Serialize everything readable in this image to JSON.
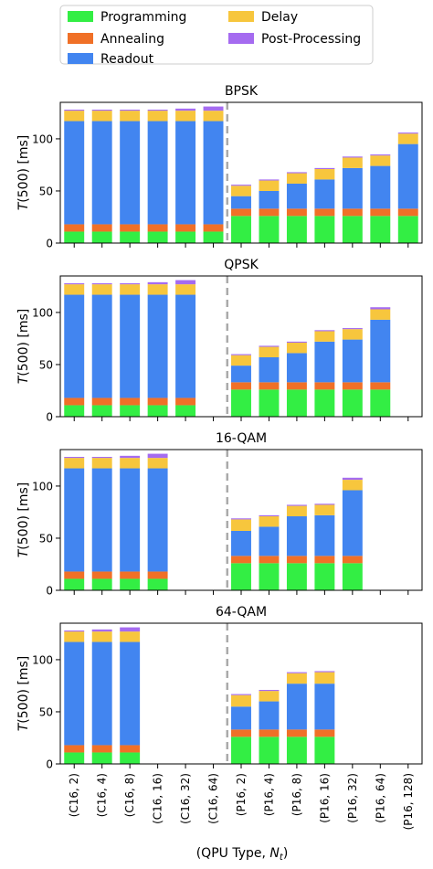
{
  "legend": {
    "items": [
      {
        "label": "Programming",
        "color": "#33ee44"
      },
      {
        "label": "Annealing",
        "color": "#f07027"
      },
      {
        "label": "Readout",
        "color": "#4285f0"
      },
      {
        "label": "Delay",
        "color": "#f7c63d"
      },
      {
        "label": "Post-Processing",
        "color": "#a56bf0"
      }
    ],
    "placement": "top"
  },
  "xlabel_main": "(QPU Type, ",
  "xlabel_var": "N",
  "xlabel_sub": "t",
  "xlabel_close": ")",
  "ylabel_main": "T",
  "ylabel_rest": "(500) [ms]",
  "chart_data": [
    {
      "type": "bar",
      "stacked": true,
      "title": "BPSK",
      "categories": [
        "(C16, 2)",
        "(C16, 4)",
        "(C16, 8)",
        "(C16, 16)",
        "(C16, 32)",
        "(C16, 64)",
        "(P16, 2)",
        "(P16, 4)",
        "(P16, 8)",
        "(P16, 16)",
        "(P16, 32)",
        "(P16, 64)",
        "(P16, 128)"
      ],
      "yticks": [
        0,
        50,
        100
      ],
      "ylim": [
        0,
        135
      ],
      "grid": false,
      "divider_between": [
        "(C16, 64)",
        "(P16, 2)"
      ],
      "series": [
        {
          "name": "Programming",
          "values": [
            11,
            11,
            11,
            11,
            11,
            11,
            26,
            26,
            26,
            26,
            26,
            26,
            26
          ]
        },
        {
          "name": "Annealing",
          "values": [
            7,
            7,
            7,
            7,
            7,
            7,
            7,
            7,
            7,
            7,
            7,
            7,
            7
          ]
        },
        {
          "name": "Readout",
          "values": [
            99,
            99,
            99,
            99,
            99,
            99,
            12,
            17,
            24,
            28,
            39,
            41,
            62
          ]
        },
        {
          "name": "Delay",
          "values": [
            10,
            10,
            10,
            10,
            10,
            10,
            10,
            10,
            10,
            10,
            10,
            10,
            10
          ]
        },
        {
          "name": "Post-Processing",
          "values": [
            1,
            1,
            1,
            1,
            2,
            4,
            1,
            1,
            1,
            1,
            1,
            1,
            1
          ]
        }
      ]
    },
    {
      "type": "bar",
      "stacked": true,
      "title": "QPSK",
      "categories": [
        "(C16, 2)",
        "(C16, 4)",
        "(C16, 8)",
        "(C16, 16)",
        "(C16, 32)",
        "(C16, 64)",
        "(P16, 2)",
        "(P16, 4)",
        "(P16, 8)",
        "(P16, 16)",
        "(P16, 32)",
        "(P16, 64)",
        "(P16, 128)"
      ],
      "yticks": [
        0,
        50,
        100
      ],
      "ylim": [
        0,
        135
      ],
      "grid": false,
      "divider_between": [
        "(C16, 64)",
        "(P16, 2)"
      ],
      "series": [
        {
          "name": "Programming",
          "values": [
            11,
            11,
            11,
            11,
            11,
            null,
            26,
            26,
            26,
            26,
            26,
            26,
            null
          ]
        },
        {
          "name": "Annealing",
          "values": [
            7,
            7,
            7,
            7,
            7,
            null,
            7,
            7,
            7,
            7,
            7,
            7,
            null
          ]
        },
        {
          "name": "Readout",
          "values": [
            99,
            99,
            99,
            99,
            99,
            null,
            16,
            24,
            28,
            39,
            41,
            60,
            null
          ]
        },
        {
          "name": "Delay",
          "values": [
            10,
            10,
            10,
            10,
            10,
            null,
            10,
            10,
            10,
            10,
            10,
            10,
            null
          ]
        },
        {
          "name": "Post-Processing",
          "values": [
            1,
            1,
            1,
            2,
            4,
            null,
            1,
            1,
            1,
            1,
            1,
            2,
            null
          ]
        }
      ]
    },
    {
      "type": "bar",
      "stacked": true,
      "title": "16-QAM",
      "categories": [
        "(C16, 2)",
        "(C16, 4)",
        "(C16, 8)",
        "(C16, 16)",
        "(C16, 32)",
        "(C16, 64)",
        "(P16, 2)",
        "(P16, 4)",
        "(P16, 8)",
        "(P16, 16)",
        "(P16, 32)",
        "(P16, 64)",
        "(P16, 128)"
      ],
      "yticks": [
        0,
        50,
        100
      ],
      "ylim": [
        0,
        135
      ],
      "grid": false,
      "divider_between": [
        "(C16, 64)",
        "(P16, 2)"
      ],
      "series": [
        {
          "name": "Programming",
          "values": [
            11,
            11,
            11,
            11,
            null,
            null,
            26,
            26,
            26,
            26,
            26,
            null,
            null
          ]
        },
        {
          "name": "Annealing",
          "values": [
            7,
            7,
            7,
            7,
            null,
            null,
            7,
            7,
            7,
            7,
            7,
            null,
            null
          ]
        },
        {
          "name": "Readout",
          "values": [
            99,
            99,
            99,
            99,
            null,
            null,
            24,
            28,
            38,
            39,
            63,
            null,
            null
          ]
        },
        {
          "name": "Delay",
          "values": [
            10,
            10,
            10,
            10,
            null,
            null,
            11,
            10,
            10,
            10,
            10,
            null,
            null
          ]
        },
        {
          "name": "Post-Processing",
          "values": [
            1,
            1,
            2,
            4,
            null,
            null,
            1,
            1,
            1,
            1,
            2,
            null,
            null
          ]
        }
      ]
    },
    {
      "type": "bar",
      "stacked": true,
      "title": "64-QAM",
      "categories": [
        "(C16, 2)",
        "(C16, 4)",
        "(C16, 8)",
        "(C16, 16)",
        "(C16, 32)",
        "(C16, 64)",
        "(P16, 2)",
        "(P16, 4)",
        "(P16, 8)",
        "(P16, 16)",
        "(P16, 32)",
        "(P16, 64)",
        "(P16, 128)"
      ],
      "yticks": [
        0,
        50,
        100
      ],
      "ylim": [
        0,
        135
      ],
      "grid": false,
      "divider_between": [
        "(C16, 64)",
        "(P16, 2)"
      ],
      "series": [
        {
          "name": "Programming",
          "values": [
            11,
            11,
            11,
            null,
            null,
            null,
            26,
            26,
            26,
            26,
            null,
            null,
            null
          ]
        },
        {
          "name": "Annealing",
          "values": [
            7,
            7,
            7,
            null,
            null,
            null,
            7,
            7,
            7,
            7,
            null,
            null,
            null
          ]
        },
        {
          "name": "Readout",
          "values": [
            99,
            99,
            99,
            null,
            null,
            null,
            22,
            27,
            44,
            44,
            null,
            null,
            null
          ]
        },
        {
          "name": "Delay",
          "values": [
            10,
            10,
            10,
            null,
            null,
            null,
            11,
            10,
            10,
            11,
            null,
            null,
            null
          ]
        },
        {
          "name": "Post-Processing",
          "values": [
            1,
            2,
            4,
            null,
            null,
            null,
            1,
            1,
            1,
            1,
            null,
            null,
            null
          ]
        }
      ]
    }
  ]
}
